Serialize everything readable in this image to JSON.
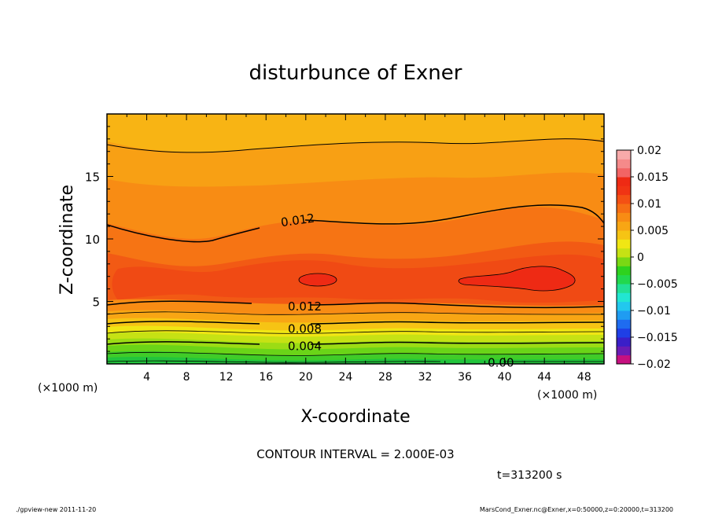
{
  "chart_data": {
    "type": "contour",
    "title": "disturbunce of Exner",
    "xlabel": "X-coordinate",
    "ylabel": "Z-coordinate",
    "x_unit_label": "(×1000 m)",
    "y_unit_label": "(×1000 m)",
    "xlim": [
      0,
      50
    ],
    "ylim": [
      0,
      20
    ],
    "x_ticks": [
      4,
      8,
      12,
      16,
      20,
      24,
      28,
      32,
      36,
      40,
      44,
      48
    ],
    "y_ticks": [
      5,
      10,
      15
    ],
    "contour_interval_text": "CONTOUR INTERVAL = 2.000E-03",
    "time_text": "t=313200 s",
    "contour_labels": [
      {
        "text": "0.012",
        "x": 17.5,
        "z": 11.3
      },
      {
        "text": "0.012",
        "x": 18.2,
        "z": 4.6
      },
      {
        "text": "0.008",
        "x": 18.2,
        "z": 2.8
      },
      {
        "text": "0.004",
        "x": 18.2,
        "z": 1.4
      },
      {
        "text": "0.00",
        "x": 38.3,
        "z": 0.1
      }
    ],
    "colorbar": {
      "tick_labels": [
        "0.02",
        "0.015",
        "0.01",
        "0.005",
        "0",
        "−0.005",
        "−0.01",
        "−0.015",
        "−0.02"
      ],
      "tick_values": [
        0.02,
        0.015,
        0.01,
        0.005,
        0,
        -0.005,
        -0.01,
        -0.015,
        -0.02
      ],
      "range": [
        -0.02,
        0.02
      ],
      "bands": [
        "#c61080",
        "#6a1cb4",
        "#3a1fc8",
        "#1f3fe6",
        "#1f6cf0",
        "#1f9cf2",
        "#22c8ee",
        "#22e6d2",
        "#22e096",
        "#22d84e",
        "#2ed21e",
        "#7ad814",
        "#c6e214",
        "#f0e614",
        "#f6c414",
        "#f8a614",
        "#f88c14",
        "#f66e14",
        "#f45014",
        "#f03414",
        "#ee2a14",
        "#f26464",
        "#f58a8a",
        "#f8aaaa"
      ]
    },
    "footer_left": "./gpview-new   2011-11-20",
    "footer_right": "MarsCond_Exner.nc@Exner,x=0:50000,z=0:20000,t=313200"
  }
}
